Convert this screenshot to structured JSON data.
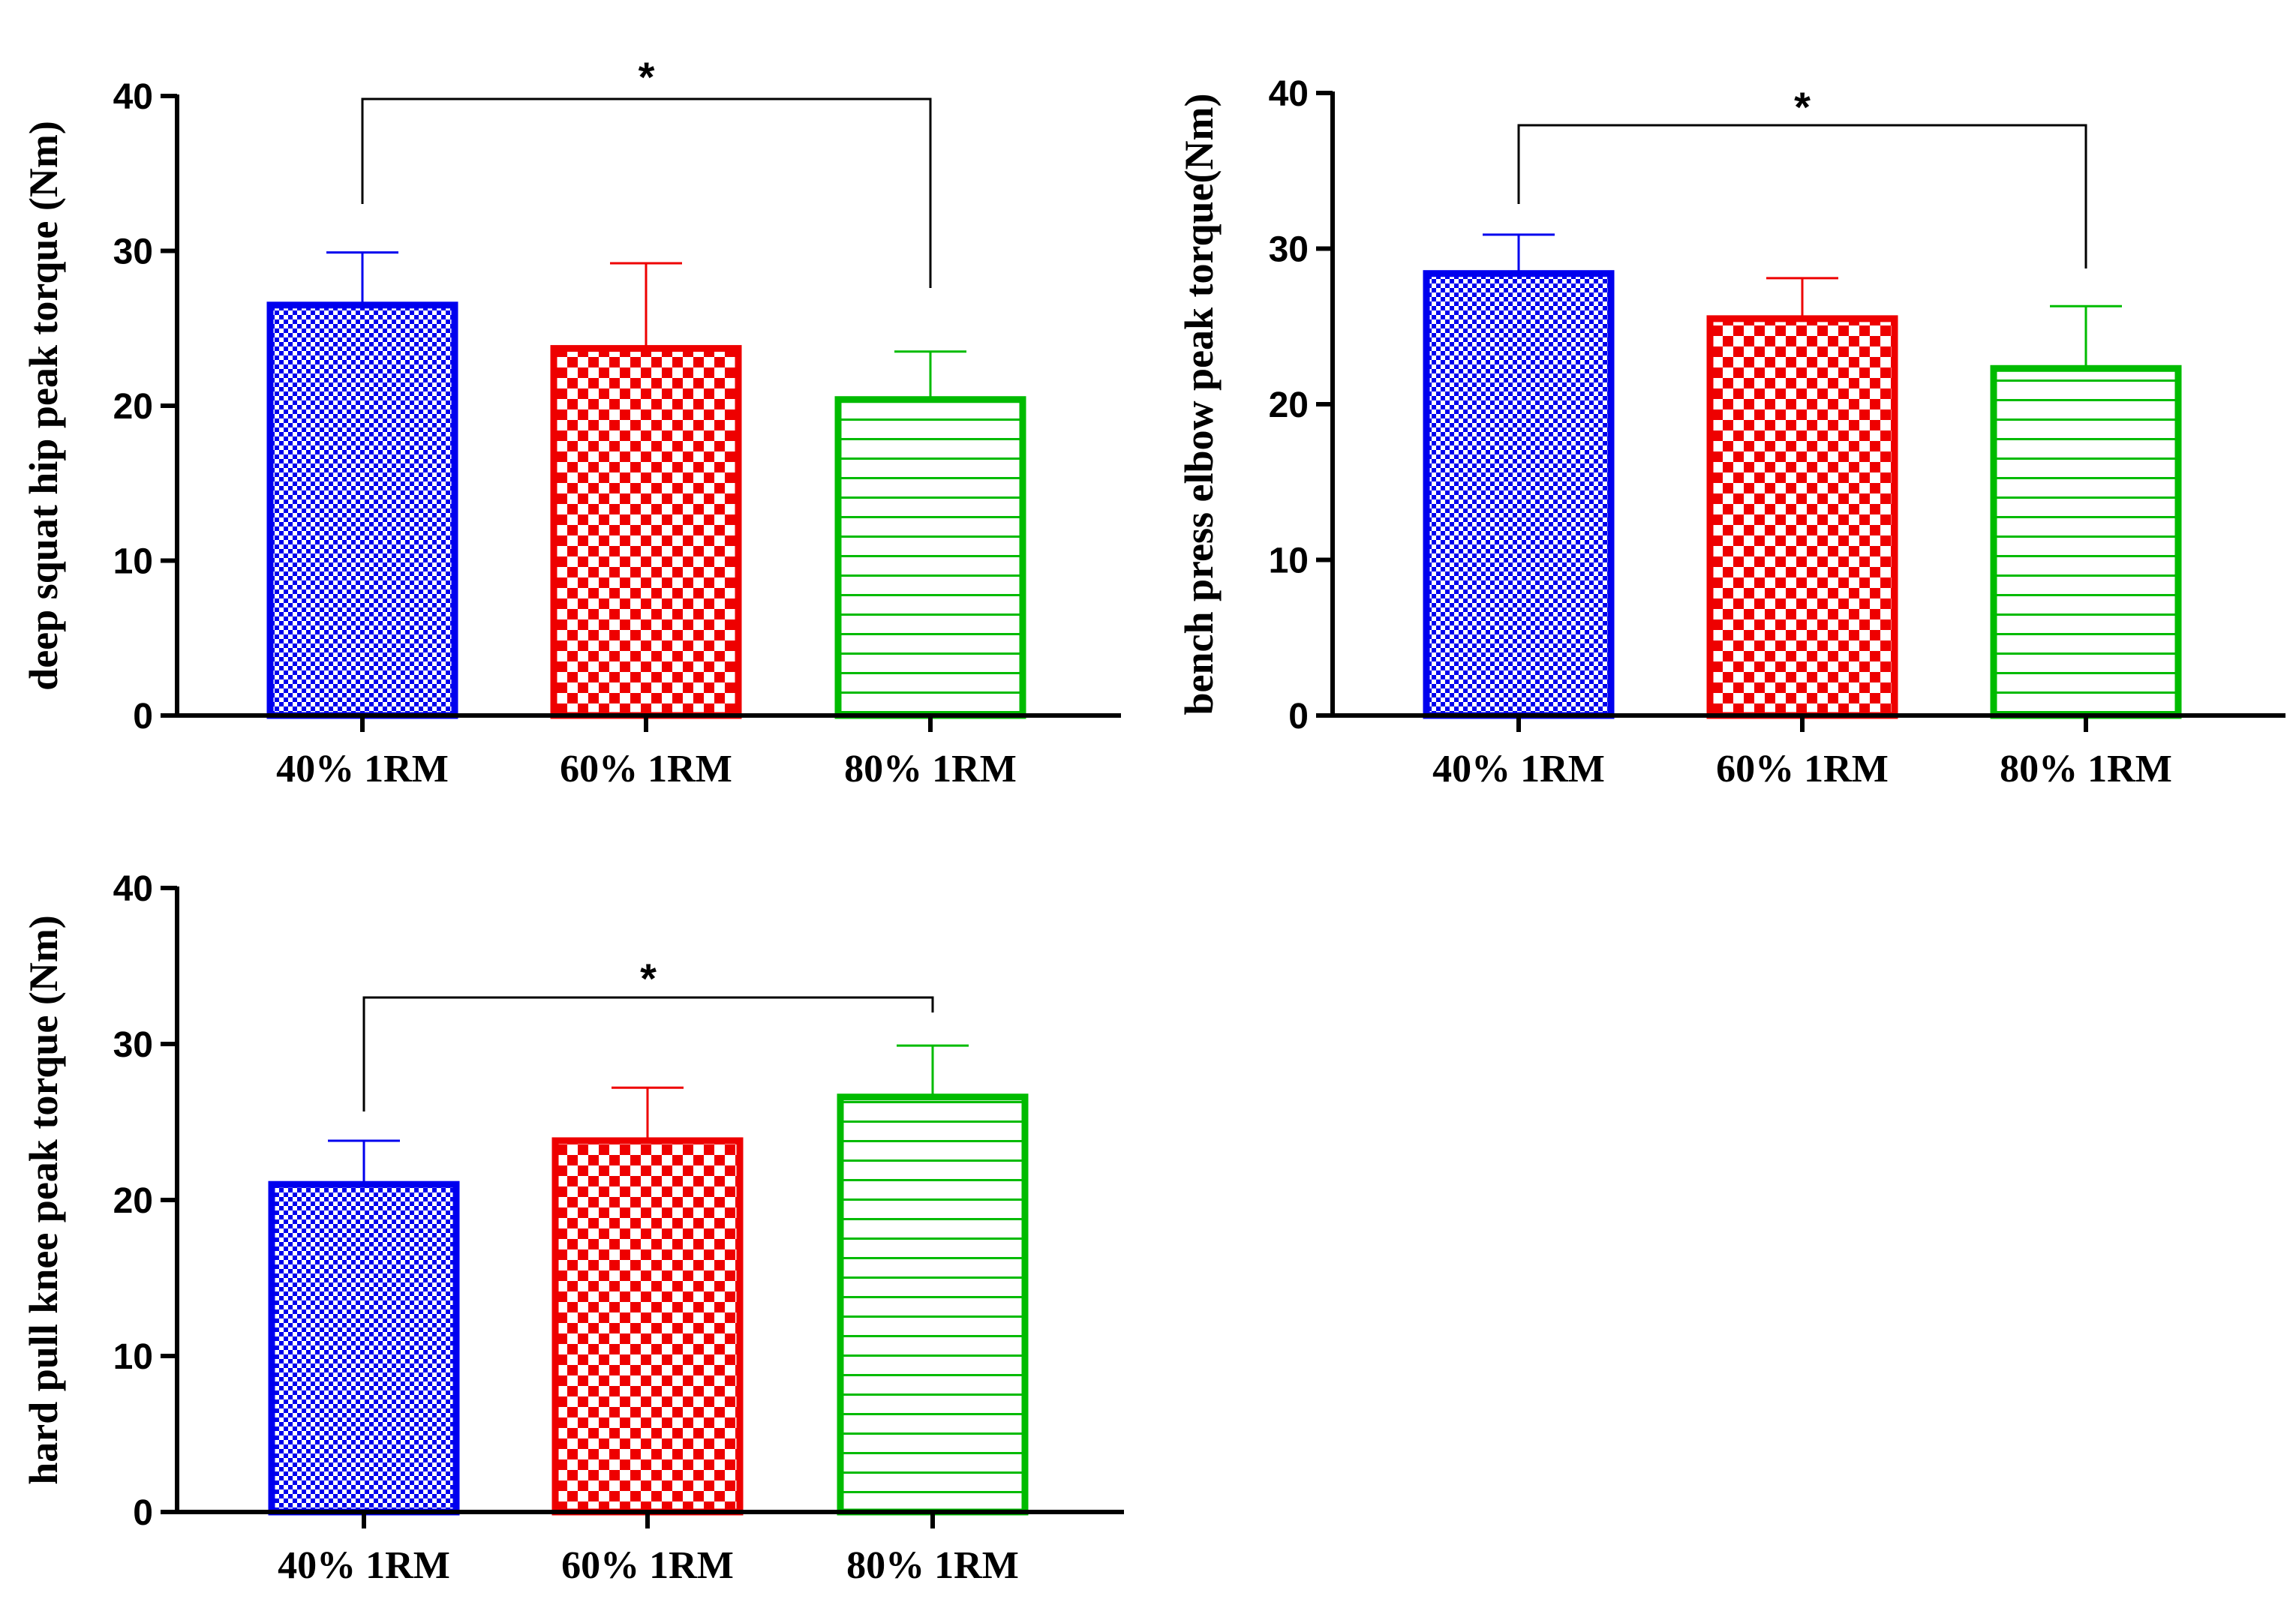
{
  "colors": {
    "blue": "#0000ee",
    "red": "#ee0000",
    "green": "#00bb00",
    "axis": "#000000"
  },
  "chart_data": [
    {
      "type": "bar",
      "categories": [
        "40% 1RM",
        "60% 1RM",
        "80% 1RM"
      ],
      "values": [
        26.5,
        23.7,
        20.4
      ],
      "errors": [
        3.4,
        5.5,
        3.1
      ],
      "patterns": [
        "checker-fine",
        "checker-coarse",
        "horizontal-lines"
      ],
      "colors": [
        "#0000ee",
        "#ee0000",
        "#00bb00"
      ],
      "ylabel": "deep squat hip peak torque (Nm)",
      "ylim": [
        0,
        40
      ],
      "yticks": [
        "0",
        "10",
        "20",
        "30",
        "40"
      ],
      "significance": {
        "from": 0,
        "to": 2,
        "label": "*"
      }
    },
    {
      "type": "bar",
      "categories": [
        "40% 1RM",
        "60% 1RM",
        "80% 1RM"
      ],
      "values": [
        28.4,
        25.5,
        22.3
      ],
      "errors": [
        2.5,
        2.6,
        4.0
      ],
      "patterns": [
        "checker-fine",
        "checker-coarse",
        "horizontal-lines"
      ],
      "colors": [
        "#0000ee",
        "#ee0000",
        "#00bb00"
      ],
      "ylabel": "bench press elbow peak torque(Nm)",
      "ylim": [
        0,
        40
      ],
      "yticks": [
        "0",
        "10",
        "20",
        "30",
        "40"
      ],
      "significance": {
        "from": 0,
        "to": 2,
        "label": "*"
      }
    },
    {
      "type": "bar",
      "categories": [
        "40% 1RM",
        "60% 1RM",
        "80% 1RM"
      ],
      "values": [
        21.0,
        23.8,
        26.6
      ],
      "errors": [
        2.8,
        3.4,
        3.3
      ],
      "patterns": [
        "checker-fine",
        "checker-coarse",
        "horizontal-lines"
      ],
      "colors": [
        "#0000ee",
        "#ee0000",
        "#00bb00"
      ],
      "ylabel": "hard pull knee peak torque (Nm)",
      "ylim": [
        0,
        40
      ],
      "yticks": [
        "0",
        "10",
        "20",
        "30",
        "40"
      ],
      "significance": {
        "from": 0,
        "to": 2,
        "label": "*"
      }
    }
  ]
}
